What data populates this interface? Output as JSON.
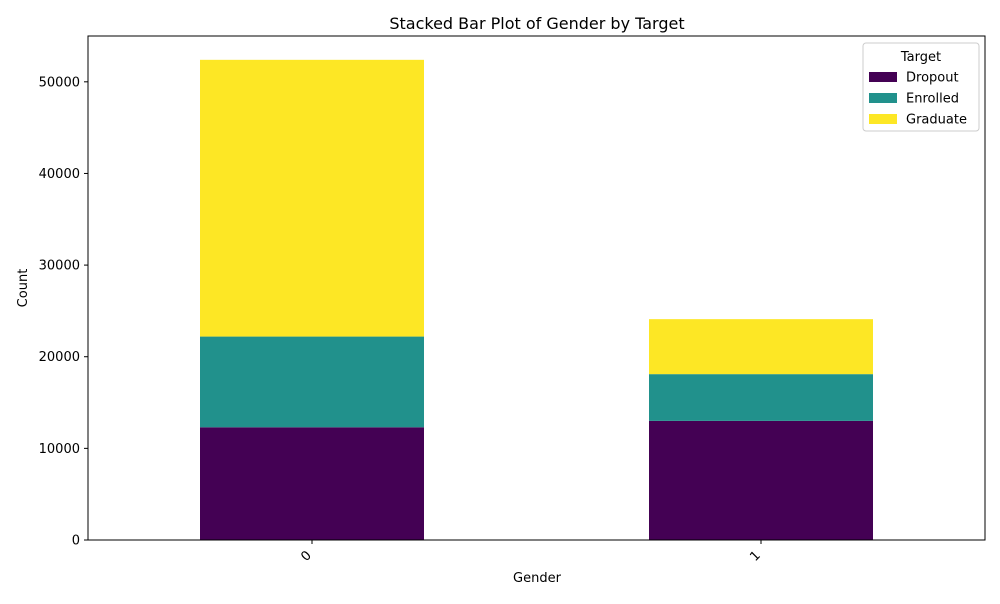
{
  "chart_data": {
    "type": "bar",
    "stacked": true,
    "title": "Stacked Bar Plot of Gender by Target",
    "xlabel": "Gender",
    "ylabel": "Count",
    "categories": [
      "0",
      "1"
    ],
    "series": [
      {
        "name": "Dropout",
        "color": "#440154",
        "values": [
          12300,
          13000
        ]
      },
      {
        "name": "Enrolled",
        "color": "#21918c",
        "values": [
          9900,
          5100
        ]
      },
      {
        "name": "Graduate",
        "color": "#fde725",
        "values": [
          30200,
          6000
        ]
      }
    ],
    "ylim": [
      0,
      55000
    ],
    "yticks": [
      0,
      10000,
      20000,
      30000,
      40000,
      50000
    ],
    "grid": false,
    "legend": {
      "title": "Target",
      "position": "top-right"
    }
  }
}
